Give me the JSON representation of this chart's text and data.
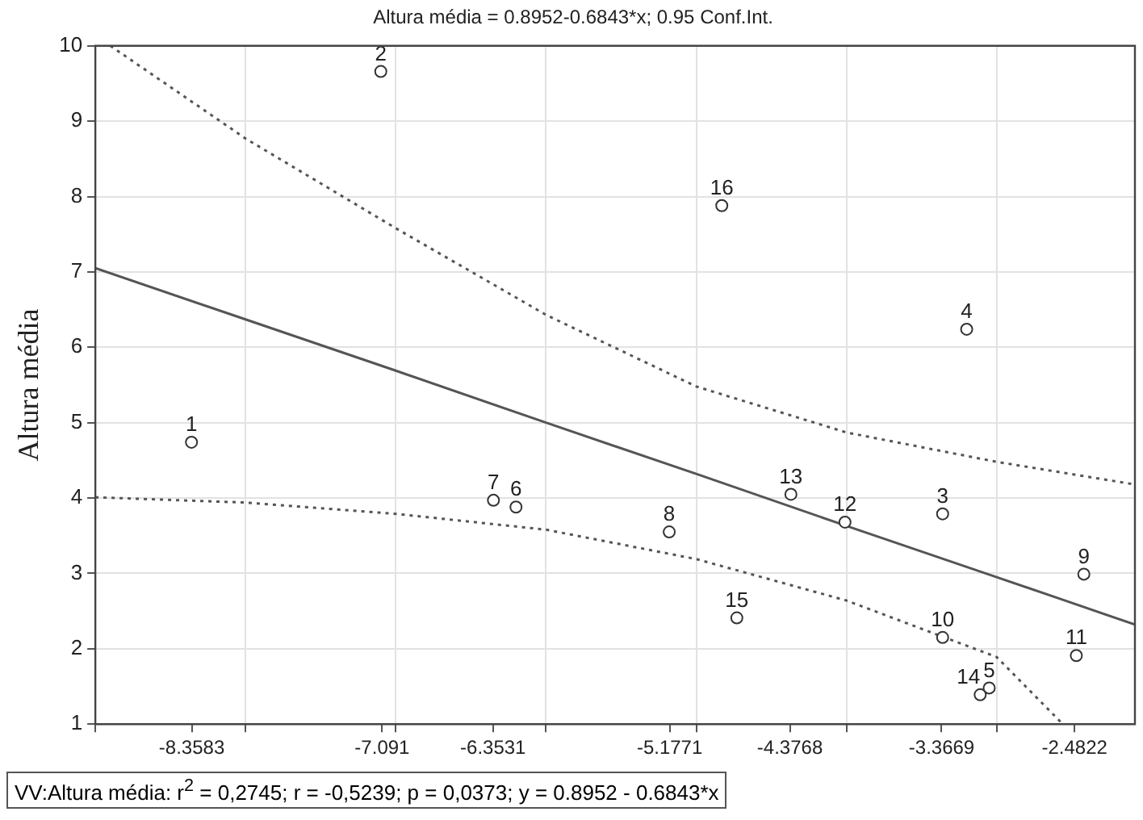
{
  "chart_data": {
    "type": "scatter",
    "title": "Altura média = 0.8952-0.6843*x; 0.95 Conf.Int.",
    "ylabel": "Altura média",
    "x": [
      -8.36,
      -7.1,
      -3.36,
      -3.2,
      -3.05,
      -6.2,
      -6.35,
      -5.18,
      -2.42,
      -3.36,
      -2.47,
      -4.01,
      -4.37,
      -3.11,
      -4.73,
      -4.83
    ],
    "series": [
      {
        "color": "#333333",
        "marker": "circle",
        "values": [
          4.74,
          9.66,
          3.79,
          6.24,
          1.48,
          3.88,
          3.97,
          3.55,
          2.99,
          2.15,
          1.91,
          3.68,
          4.05,
          1.39,
          2.41,
          7.88
        ]
      },
      {
        "type": "line",
        "color": "#555555",
        "line_style": "solid",
        "marker": "none",
        "x": [
          -9,
          -8,
          -7,
          -6,
          -5,
          -4,
          -3,
          -2.56,
          -2.08
        ],
        "values": [
          7.05,
          6.37,
          5.69,
          5.0,
          4.32,
          3.63,
          2.95,
          2.65,
          2.32
        ]
      },
      {
        "type": "line",
        "color": "#555555",
        "line_style": "dotted",
        "marker": "none",
        "x": [
          -9,
          -8,
          -7,
          -6,
          -5,
          -4,
          -3,
          -2.56
        ],
        "values": [
          4.01,
          3.94,
          3.79,
          3.58,
          3.19,
          2.64,
          1.89,
          1.0
        ]
      },
      {
        "type": "line",
        "color": "#555555",
        "line_style": "dotted",
        "marker": "none",
        "x": [
          -8.9,
          -8,
          -7,
          -6,
          -5,
          -4,
          -3,
          -2.08
        ],
        "values": [
          10.0,
          8.77,
          7.58,
          6.43,
          5.48,
          4.87,
          4.48,
          4.18
        ]
      }
    ],
    "xlim": [
      -9,
      -2.08
    ],
    "xticks": [
      {
        "value": -9,
        "label": null
      },
      {
        "value": -8,
        "label": null
      },
      {
        "value": -7,
        "label": null
      },
      {
        "value": -6,
        "label": null
      },
      {
        "value": -5,
        "label": null
      },
      {
        "value": -4,
        "label": null
      },
      {
        "value": -3,
        "label": null
      },
      {
        "value": -8.3583,
        "label": "-8.3583"
      },
      {
        "value": -7.091,
        "label": "-7.091"
      },
      {
        "value": -6.3531,
        "label": "-6.3531"
      },
      {
        "value": -5.1771,
        "label": "-5.1771"
      },
      {
        "value": -4.3768,
        "label": "-4.3768"
      },
      {
        "value": -3.3669,
        "label": "-3.3669"
      },
      {
        "value": -2.4822,
        "label": "-2.4822"
      }
    ],
    "ylim": [
      1,
      10
    ],
    "yticks": [
      1,
      2,
      3,
      4,
      5,
      6,
      7,
      8,
      9,
      10
    ],
    "grid": true,
    "legend": false,
    "annotations": [
      {
        "text": "1",
        "x": -8.36,
        "y": 4.74
      },
      {
        "text": "2",
        "x": -7.1,
        "y": 9.66
      },
      {
        "text": "3",
        "x": -3.36,
        "y": 3.79
      },
      {
        "text": "4",
        "x": -3.2,
        "y": 6.24
      },
      {
        "text": "5",
        "x": -3.05,
        "y": 1.48
      },
      {
        "text": "6",
        "x": -6.2,
        "y": 3.88
      },
      {
        "text": "7",
        "x": -6.35,
        "y": 3.97
      },
      {
        "text": "8",
        "x": -5.18,
        "y": 3.55
      },
      {
        "text": "9",
        "x": -2.42,
        "y": 2.99
      },
      {
        "text": "10",
        "x": -3.36,
        "y": 2.15
      },
      {
        "text": "11",
        "x": -2.47,
        "y": 1.91
      },
      {
        "text": "12",
        "x": -4.01,
        "y": 3.68
      },
      {
        "text": "13",
        "x": -4.37,
        "y": 4.05
      },
      {
        "text": "14",
        "x": -3.11,
        "y": 1.39
      },
      {
        "text": "15",
        "x": -4.73,
        "y": 2.41
      },
      {
        "text": "16",
        "x": -4.83,
        "y": 7.88
      },
      "VV:Altura média:  r$^{2}$ = 0,2745;  r = -0,5239; p = 0,0373;  y = 0.8952 - 0.6843*x"
    ]
  }
}
